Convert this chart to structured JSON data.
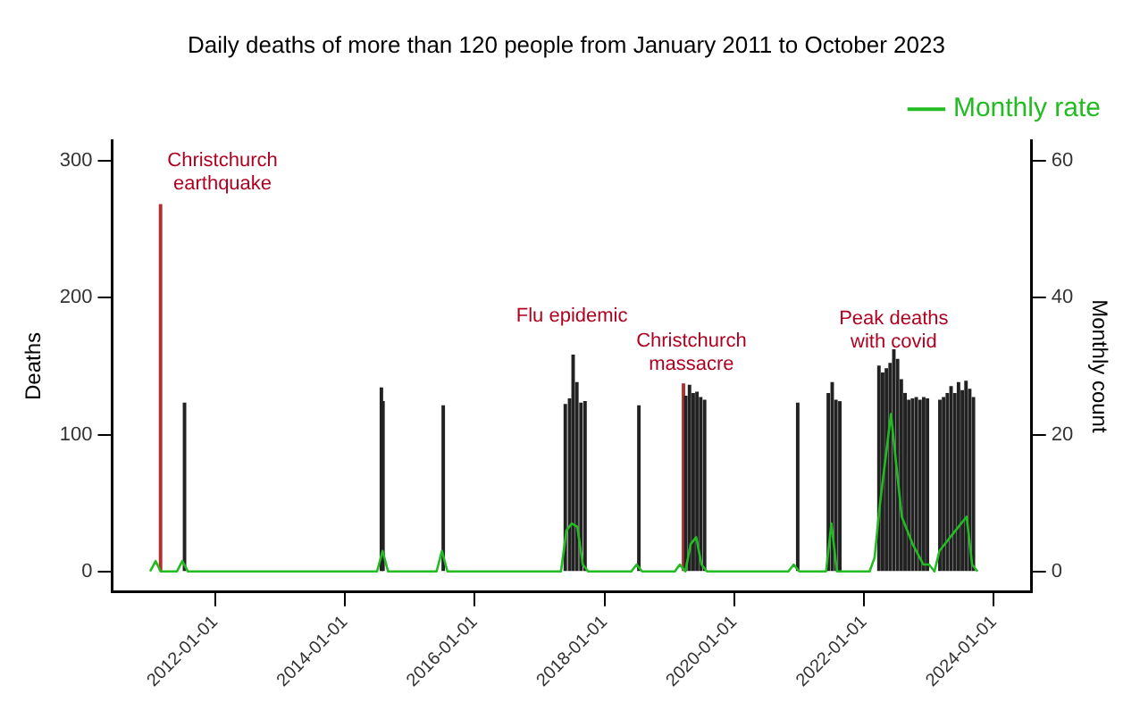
{
  "chart_data": {
    "type": "bar",
    "title": "Daily deaths of more than 120 people from January 2011 to October 2023",
    "ylabel": "Deaths",
    "y2label": "Monthly count",
    "xlim": [
      "2010-06-01",
      "2024-08-01"
    ],
    "xticks": [
      "2012-01-01",
      "2014-01-01",
      "2016-01-01",
      "2018-01-01",
      "2020-01-01",
      "2022-01-01",
      "2024-01-01"
    ],
    "ylim": [
      -15,
      315
    ],
    "yticks": [
      0,
      100,
      200,
      300
    ],
    "y2lim": [
      -3,
      63
    ],
    "y2ticks": [
      0,
      20,
      40,
      60
    ],
    "grid": false,
    "legend": "top right",
    "marker": "none",
    "series": [
      {
        "color": "#222222",
        "x": [
          "2011-07-20",
          "2014-08-01",
          "2014-08-10",
          "2015-07-15",
          "2017-06-01",
          "2017-06-25",
          "2017-07-15",
          "2017-08-05",
          "2017-08-28",
          "2017-09-20",
          "2018-07-20",
          "2019-04-10",
          "2019-05-01",
          "2019-05-22",
          "2019-06-12",
          "2019-07-03",
          "2019-07-25",
          "2020-12-30",
          "2021-06-20",
          "2021-07-12",
          "2021-08-02",
          "2021-08-24",
          "2022-04-01",
          "2022-04-22",
          "2022-05-13",
          "2022-06-03",
          "2022-06-24",
          "2022-07-15",
          "2022-08-05",
          "2022-08-26",
          "2022-09-16",
          "2022-10-07",
          "2022-10-28",
          "2022-11-18",
          "2022-12-09",
          "2022-12-30",
          "2023-03-10",
          "2023-03-31",
          "2023-04-21",
          "2023-05-12",
          "2023-06-02",
          "2023-06-23",
          "2023-07-14",
          "2023-08-04",
          "2023-08-25",
          "2023-09-15"
        ],
        "values": [
          123,
          134,
          124,
          121,
          122,
          126,
          158,
          138,
          123,
          124,
          121,
          128,
          136,
          130,
          131,
          127,
          125,
          123,
          130,
          138,
          125,
          124,
          150,
          145,
          148,
          152,
          162,
          155,
          140,
          130,
          125,
          126,
          127,
          125,
          127,
          126,
          125,
          127,
          130,
          135,
          130,
          138,
          132,
          139,
          133,
          127
        ]
      },
      {
        "color": "#b03030",
        "x": [
          "2011-02-22",
          "2019-03-15"
        ],
        "values": [
          268,
          137
        ]
      },
      {
        "type": "line",
        "name": "Monthly rate",
        "color": "#22bb22",
        "axis": "y2",
        "x": [
          "2011-01",
          "2011-02",
          "2011-03",
          "2011-06",
          "2011-07",
          "2011-08",
          "2014-07",
          "2014-08",
          "2014-09",
          "2015-06",
          "2015-07",
          "2015-08",
          "2017-05",
          "2017-06",
          "2017-07",
          "2017-08",
          "2017-09",
          "2017-10",
          "2018-06",
          "2018-07",
          "2018-08",
          "2019-02",
          "2019-03",
          "2019-04",
          "2019-05",
          "2019-06",
          "2019-07",
          "2019-08",
          "2020-11",
          "2020-12",
          "2021-01",
          "2021-06",
          "2021-07",
          "2021-08",
          "2022-02",
          "2022-03",
          "2022-04",
          "2022-06",
          "2022-08",
          "2022-10",
          "2022-12",
          "2023-01",
          "2023-02",
          "2023-03",
          "2023-05",
          "2023-07",
          "2023-08",
          "2023-09",
          "2023-10"
        ],
        "values": [
          0,
          1.5,
          0,
          0,
          1.5,
          0,
          0,
          3,
          0,
          0,
          3,
          0,
          0,
          6,
          7,
          6.5,
          1,
          0,
          0,
          1,
          0,
          0,
          1,
          0,
          4,
          5,
          1,
          0,
          0,
          1,
          0,
          0,
          7,
          0,
          0,
          2,
          10,
          23,
          8,
          4,
          1,
          1,
          0,
          3,
          5,
          7,
          8,
          1,
          0
        ]
      }
    ],
    "annotations": [
      "Christchurch\nearthquake",
      "Flu epidemic",
      "Christchurch\nmassacre",
      "Peak deaths\nwith covid"
    ]
  }
}
